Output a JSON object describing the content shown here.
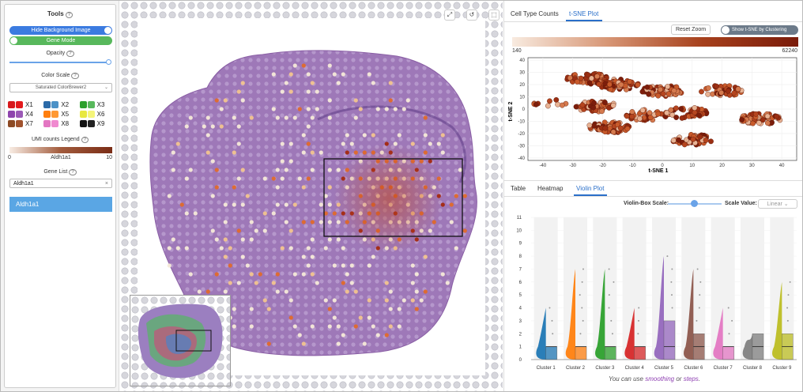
{
  "sidebar": {
    "tools_title": "Tools",
    "hide_bg_label": "Hide Background Image",
    "gene_mode_label": "Gene Mode",
    "opacity_label": "Opacity",
    "opacity_value": 0.98,
    "color_scale_label": "Color Scale",
    "color_scale_value": "Saturated ColorBrewer2",
    "clusters": [
      {
        "label": "X1",
        "c1": "#d7191c",
        "c2": "#e31a1c"
      },
      {
        "label": "X2",
        "c1": "#2b6aa8",
        "c2": "#4b91c7"
      },
      {
        "label": "X3",
        "c1": "#2ca02c",
        "c2": "#58b85c"
      },
      {
        "label": "X4",
        "c1": "#8e44ad",
        "c2": "#9b59b6"
      },
      {
        "label": "X5",
        "c1": "#ff7f0e",
        "c2": "#ff9933"
      },
      {
        "label": "X6",
        "c1": "#e8e840",
        "c2": "#f5f57a"
      },
      {
        "label": "X7",
        "c1": "#8c4a24",
        "c2": "#a0522d"
      },
      {
        "label": "X8",
        "c1": "#e377c2",
        "c2": "#f08ad0"
      },
      {
        "label": "X9",
        "c1": "#111111",
        "c2": "#222222"
      }
    ],
    "umi_legend_label": "UMI counts Legend",
    "umi_min": "0",
    "umi_max": "10",
    "umi_gene": "Aldh1a1",
    "gene_list_label": "Gene List",
    "gene_input_value": "Aldh1a1",
    "gene_selected": "Aldh1a1"
  },
  "right": {
    "tabs_top": [
      "Cell Type Counts",
      "t-SNE Plot"
    ],
    "active_top": "t-SNE Plot",
    "reset_zoom": "Reset Zoom",
    "toggle_label": "Show t-SNE by Clustering",
    "tsne_min": "140",
    "tsne_max": "62240",
    "tsne_xlabel": "t-SNE 1",
    "tsne_ylabel": "t-SNE 2",
    "tsne_xticks": [
      "-40",
      "-30",
      "-20",
      "-10",
      "0",
      "10",
      "20",
      "30",
      "40"
    ],
    "tsne_yticks": [
      "40",
      "30",
      "20",
      "10",
      "0",
      "-10",
      "-20",
      "-30",
      "-40"
    ],
    "tabs_bottom": [
      "Table",
      "Heatmap",
      "Violin Plot"
    ],
    "active_bottom": "Violin Plot",
    "violin_box_scale": "Violin-Box Scale:",
    "scale_value_label": "Scale Value:",
    "scale_value": "Linear",
    "note_prefix": "You can use ",
    "note_smoothing": "smoothing",
    "note_or": " or ",
    "note_steps": "steps",
    "note_suffix": "."
  },
  "chart_data": [
    {
      "type": "scatter",
      "xlabel": "t-SNE 1",
      "ylabel": "t-SNE 2",
      "xlim": [
        -45,
        45
      ],
      "ylim": [
        -42,
        42
      ],
      "color_scale": {
        "min": 140,
        "max": 62240
      },
      "clusters_approx": [
        {
          "x": -25,
          "y": 25,
          "n": 60
        },
        {
          "x": -15,
          "y": 20,
          "n": 80
        },
        {
          "x": 0,
          "y": 15,
          "n": 70
        },
        {
          "x": -22,
          "y": 2,
          "n": 60
        },
        {
          "x": -18,
          "y": -15,
          "n": 70
        },
        {
          "x": -5,
          "y": -5,
          "n": 40
        },
        {
          "x": 8,
          "y": -3,
          "n": 50
        },
        {
          "x": 10,
          "y": -25,
          "n": 50
        },
        {
          "x": 20,
          "y": 15,
          "n": 40
        },
        {
          "x": 33,
          "y": -8,
          "n": 60
        },
        {
          "x": -38,
          "y": 5,
          "n": 10
        }
      ]
    },
    {
      "type": "violin",
      "ylim": [
        0,
        11
      ],
      "yticks": [
        0,
        1,
        2,
        3,
        4,
        5,
        6,
        7,
        8,
        9,
        10,
        11
      ],
      "categories": [
        "Cluster 1",
        "Cluster 2",
        "Cluster 3",
        "Cluster 4",
        "Cluster 5",
        "Cluster 6",
        "Cluster 7",
        "Cluster 8",
        "Cluster 9"
      ],
      "colors": [
        "#1f77b4",
        "#ff7f0e",
        "#2ca02c",
        "#d62728",
        "#9467bd",
        "#8c564b",
        "#e377c2",
        "#7f7f7f",
        "#bcbd22"
      ],
      "box_q1": [
        0,
        0,
        0,
        0,
        0,
        0,
        0,
        0,
        0
      ],
      "box_q3": [
        1,
        1,
        1,
        1,
        3,
        2,
        1,
        2,
        2
      ],
      "medians": [
        1,
        1,
        1,
        1,
        1,
        1,
        1,
        1,
        1
      ],
      "max_outlier": [
        4,
        7,
        7,
        4,
        8,
        7,
        4,
        2,
        6
      ]
    }
  ]
}
